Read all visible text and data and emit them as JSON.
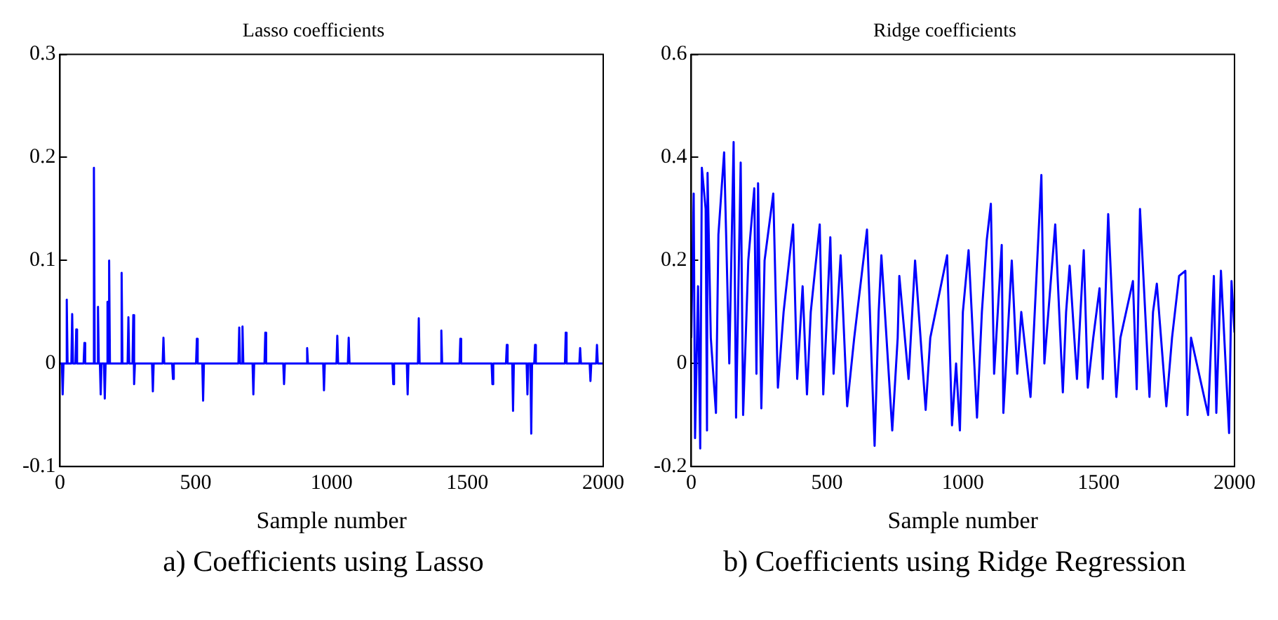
{
  "chart_data": [
    {
      "type": "line",
      "title": "Lasso coefficients",
      "xlabel": "Sample number",
      "annotations": [
        "a) Coefficients using Lasso"
      ],
      "x": [
        0,
        7,
        10,
        13,
        22,
        25,
        28,
        42,
        45,
        48,
        57,
        60,
        63,
        87,
        90,
        93,
        122,
        125,
        128,
        137,
        140,
        143,
        147,
        150,
        153,
        162,
        165,
        168,
        172,
        175,
        178,
        181,
        184,
        224,
        227,
        230,
        249,
        252,
        255,
        267,
        270,
        273,
        276,
        339,
        342,
        345,
        378,
        381,
        384,
        413,
        416,
        419,
        501,
        504,
        507,
        524,
        527,
        530,
        657,
        660,
        663,
        669,
        672,
        675,
        709,
        712,
        715,
        753,
        756,
        759,
        822,
        825,
        828,
        907,
        910,
        913,
        969,
        972,
        975,
        1018,
        1021,
        1024,
        1060,
        1063,
        1066,
        1224,
        1227,
        1230,
        1277,
        1280,
        1283,
        1318,
        1321,
        1324,
        1401,
        1404,
        1407,
        1471,
        1474,
        1477,
        1589,
        1592,
        1595,
        1642,
        1645,
        1648,
        1665,
        1668,
        1671,
        1718,
        1721,
        1724,
        1732,
        1735,
        1738,
        1746,
        1749,
        1752,
        1859,
        1862,
        1865,
        1912,
        1915,
        1918,
        1950,
        1953,
        1956,
        1974,
        1977,
        1980,
        2000
      ],
      "series": [
        {
          "color": "#0000ff",
          "values": [
            0,
            0,
            -0.03,
            0,
            0,
            0.062,
            0,
            0,
            0.048,
            0,
            0,
            0.033,
            0,
            0,
            0.02,
            0,
            0,
            0.19,
            0,
            0,
            0.055,
            0,
            0,
            -0.03,
            0,
            0,
            -0.034,
            0,
            0,
            0.06,
            0,
            0.1,
            0,
            0,
            0.088,
            0,
            0,
            0.045,
            0,
            0,
            0.047,
            -0.02,
            0,
            0,
            -0.027,
            0,
            0,
            0.025,
            0,
            0,
            -0.015,
            0,
            0,
            0.024,
            0,
            0,
            -0.036,
            0,
            0,
            0.035,
            0,
            0,
            0.036,
            0,
            0,
            -0.03,
            0,
            0,
            0.03,
            0,
            0,
            -0.02,
            0,
            0,
            0.015,
            0,
            0,
            -0.026,
            0,
            0,
            0.027,
            0,
            0,
            0.025,
            0,
            0,
            -0.02,
            0,
            0,
            -0.03,
            0,
            0,
            0.044,
            0,
            0,
            0.032,
            0,
            0,
            0.024,
            0,
            0,
            -0.02,
            0,
            0,
            0.018,
            0,
            0,
            -0.046,
            0,
            0,
            -0.03,
            0,
            0,
            -0.068,
            0,
            0,
            0.018,
            0,
            0,
            0.03,
            0,
            0,
            0.015,
            0,
            0,
            -0.017,
            0,
            0,
            0.018,
            0,
            0
          ]
        }
      ],
      "xlim": [
        0,
        2000
      ],
      "xticks": [
        0,
        500,
        1000,
        1500,
        2000
      ],
      "ylim": [
        -0.1,
        0.3
      ],
      "yticks": [
        -0.1,
        0,
        0.1,
        0.2,
        0.3
      ],
      "grid": false,
      "legend": false,
      "marker": "none",
      "line_style": "solid"
    },
    {
      "type": "line",
      "title": "Ridge coefficients",
      "xlabel": "Sample number",
      "annotations": [
        "b) Coefficients using Ridge Regression"
      ],
      "x": [
        0,
        9,
        14,
        25,
        33,
        39,
        53,
        58,
        60,
        72,
        91,
        100,
        121,
        140,
        156,
        165,
        182,
        191,
        210,
        232,
        240,
        246,
        258,
        270,
        302,
        319,
        340,
        375,
        390,
        410,
        426,
        440,
        473,
        486,
        500,
        512,
        524,
        550,
        574,
        600,
        647,
        675,
        690,
        700,
        740,
        760,
        766,
        800,
        824,
        863,
        880,
        942,
        960,
        975,
        989,
        1000,
        1021,
        1052,
        1070,
        1088,
        1103,
        1115,
        1143,
        1149,
        1180,
        1200,
        1215,
        1249,
        1260,
        1289,
        1300,
        1340,
        1368,
        1380,
        1393,
        1420,
        1445,
        1460,
        1480,
        1503,
        1515,
        1535,
        1565,
        1580,
        1626,
        1640,
        1652,
        1687,
        1700,
        1714,
        1749,
        1770,
        1796,
        1819,
        1827,
        1840,
        1903,
        1924,
        1933,
        1950,
        1980,
        1989,
        2000
      ],
      "series": [
        {
          "color": "#0000ff",
          "values": [
            0.05,
            0.33,
            -0.145,
            0.15,
            -0.165,
            0.38,
            0.3,
            -0.13,
            0.37,
            0.05,
            -0.096,
            0.25,
            0.41,
            0,
            0.43,
            -0.105,
            0.39,
            -0.1,
            0.2,
            0.34,
            -0.02,
            0.35,
            -0.087,
            0.2,
            0.33,
            -0.047,
            0.1,
            0.27,
            -0.03,
            0.15,
            -0.06,
            0.1,
            0.27,
            -0.06,
            0.1,
            0.245,
            -0.02,
            0.21,
            -0.083,
            0.05,
            0.26,
            -0.16,
            0.1,
            0.21,
            -0.13,
            0.05,
            0.17,
            -0.03,
            0.2,
            -0.09,
            0.05,
            0.21,
            -0.12,
            0,
            -0.13,
            0.1,
            0.22,
            -0.105,
            0.1,
            0.24,
            0.31,
            -0.02,
            0.23,
            -0.096,
            0.2,
            -0.02,
            0.1,
            -0.065,
            0.05,
            0.366,
            0,
            0.27,
            -0.056,
            0.1,
            0.19,
            -0.03,
            0.22,
            -0.047,
            0.05,
            0.146,
            -0.03,
            0.29,
            -0.065,
            0.05,
            0.16,
            -0.05,
            0.3,
            -0.065,
            0.1,
            0.155,
            -0.083,
            0.05,
            0.17,
            0.18,
            -0.1,
            0.05,
            -0.1,
            0.17,
            -0.096,
            0.18,
            -0.135,
            0.16,
            0.06
          ]
        }
      ],
      "xlim": [
        0,
        2000
      ],
      "xticks": [
        0,
        500,
        1000,
        1500,
        2000
      ],
      "ylim": [
        -0.2,
        0.6
      ],
      "yticks": [
        -0.2,
        0,
        0.2,
        0.4,
        0.6
      ],
      "grid": false,
      "legend": false,
      "marker": "none",
      "line_style": "solid"
    }
  ]
}
